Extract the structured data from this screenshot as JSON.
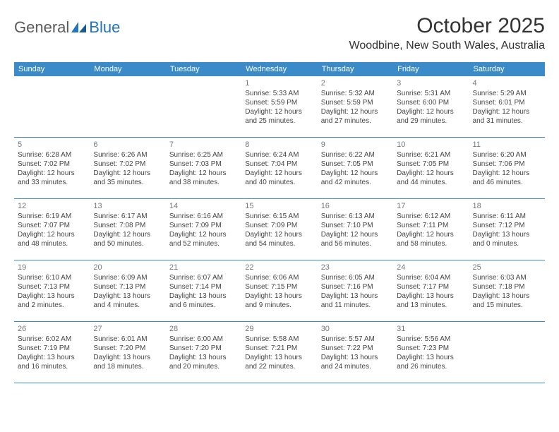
{
  "brand": {
    "name1": "General",
    "name2": "Blue"
  },
  "title": "October 2025",
  "location": "Woodbine, New South Wales, Australia",
  "colors": {
    "header_bg": "#3b8bc8",
    "header_text": "#ffffff",
    "body_text": "#444444",
    "daynum": "#777777",
    "rule": "#3b8bc8",
    "logo_blue": "#2474b8",
    "logo_gray": "#5a5a5a",
    "page_bg": "#ffffff"
  },
  "weekdays": [
    "Sunday",
    "Monday",
    "Tuesday",
    "Wednesday",
    "Thursday",
    "Friday",
    "Saturday"
  ],
  "weeks": [
    [
      null,
      null,
      null,
      {
        "n": "1",
        "sr": "Sunrise: 5:33 AM",
        "ss": "Sunset: 5:59 PM",
        "d1": "Daylight: 12 hours",
        "d2": "and 25 minutes."
      },
      {
        "n": "2",
        "sr": "Sunrise: 5:32 AM",
        "ss": "Sunset: 5:59 PM",
        "d1": "Daylight: 12 hours",
        "d2": "and 27 minutes."
      },
      {
        "n": "3",
        "sr": "Sunrise: 5:31 AM",
        "ss": "Sunset: 6:00 PM",
        "d1": "Daylight: 12 hours",
        "d2": "and 29 minutes."
      },
      {
        "n": "4",
        "sr": "Sunrise: 5:29 AM",
        "ss": "Sunset: 6:01 PM",
        "d1": "Daylight: 12 hours",
        "d2": "and 31 minutes."
      }
    ],
    [
      {
        "n": "5",
        "sr": "Sunrise: 6:28 AM",
        "ss": "Sunset: 7:02 PM",
        "d1": "Daylight: 12 hours",
        "d2": "and 33 minutes."
      },
      {
        "n": "6",
        "sr": "Sunrise: 6:26 AM",
        "ss": "Sunset: 7:02 PM",
        "d1": "Daylight: 12 hours",
        "d2": "and 35 minutes."
      },
      {
        "n": "7",
        "sr": "Sunrise: 6:25 AM",
        "ss": "Sunset: 7:03 PM",
        "d1": "Daylight: 12 hours",
        "d2": "and 38 minutes."
      },
      {
        "n": "8",
        "sr": "Sunrise: 6:24 AM",
        "ss": "Sunset: 7:04 PM",
        "d1": "Daylight: 12 hours",
        "d2": "and 40 minutes."
      },
      {
        "n": "9",
        "sr": "Sunrise: 6:22 AM",
        "ss": "Sunset: 7:05 PM",
        "d1": "Daylight: 12 hours",
        "d2": "and 42 minutes."
      },
      {
        "n": "10",
        "sr": "Sunrise: 6:21 AM",
        "ss": "Sunset: 7:05 PM",
        "d1": "Daylight: 12 hours",
        "d2": "and 44 minutes."
      },
      {
        "n": "11",
        "sr": "Sunrise: 6:20 AM",
        "ss": "Sunset: 7:06 PM",
        "d1": "Daylight: 12 hours",
        "d2": "and 46 minutes."
      }
    ],
    [
      {
        "n": "12",
        "sr": "Sunrise: 6:19 AM",
        "ss": "Sunset: 7:07 PM",
        "d1": "Daylight: 12 hours",
        "d2": "and 48 minutes."
      },
      {
        "n": "13",
        "sr": "Sunrise: 6:17 AM",
        "ss": "Sunset: 7:08 PM",
        "d1": "Daylight: 12 hours",
        "d2": "and 50 minutes."
      },
      {
        "n": "14",
        "sr": "Sunrise: 6:16 AM",
        "ss": "Sunset: 7:09 PM",
        "d1": "Daylight: 12 hours",
        "d2": "and 52 minutes."
      },
      {
        "n": "15",
        "sr": "Sunrise: 6:15 AM",
        "ss": "Sunset: 7:09 PM",
        "d1": "Daylight: 12 hours",
        "d2": "and 54 minutes."
      },
      {
        "n": "16",
        "sr": "Sunrise: 6:13 AM",
        "ss": "Sunset: 7:10 PM",
        "d1": "Daylight: 12 hours",
        "d2": "and 56 minutes."
      },
      {
        "n": "17",
        "sr": "Sunrise: 6:12 AM",
        "ss": "Sunset: 7:11 PM",
        "d1": "Daylight: 12 hours",
        "d2": "and 58 minutes."
      },
      {
        "n": "18",
        "sr": "Sunrise: 6:11 AM",
        "ss": "Sunset: 7:12 PM",
        "d1": "Daylight: 13 hours",
        "d2": "and 0 minutes."
      }
    ],
    [
      {
        "n": "19",
        "sr": "Sunrise: 6:10 AM",
        "ss": "Sunset: 7:13 PM",
        "d1": "Daylight: 13 hours",
        "d2": "and 2 minutes."
      },
      {
        "n": "20",
        "sr": "Sunrise: 6:09 AM",
        "ss": "Sunset: 7:13 PM",
        "d1": "Daylight: 13 hours",
        "d2": "and 4 minutes."
      },
      {
        "n": "21",
        "sr": "Sunrise: 6:07 AM",
        "ss": "Sunset: 7:14 PM",
        "d1": "Daylight: 13 hours",
        "d2": "and 6 minutes."
      },
      {
        "n": "22",
        "sr": "Sunrise: 6:06 AM",
        "ss": "Sunset: 7:15 PM",
        "d1": "Daylight: 13 hours",
        "d2": "and 9 minutes."
      },
      {
        "n": "23",
        "sr": "Sunrise: 6:05 AM",
        "ss": "Sunset: 7:16 PM",
        "d1": "Daylight: 13 hours",
        "d2": "and 11 minutes."
      },
      {
        "n": "24",
        "sr": "Sunrise: 6:04 AM",
        "ss": "Sunset: 7:17 PM",
        "d1": "Daylight: 13 hours",
        "d2": "and 13 minutes."
      },
      {
        "n": "25",
        "sr": "Sunrise: 6:03 AM",
        "ss": "Sunset: 7:18 PM",
        "d1": "Daylight: 13 hours",
        "d2": "and 15 minutes."
      }
    ],
    [
      {
        "n": "26",
        "sr": "Sunrise: 6:02 AM",
        "ss": "Sunset: 7:19 PM",
        "d1": "Daylight: 13 hours",
        "d2": "and 16 minutes."
      },
      {
        "n": "27",
        "sr": "Sunrise: 6:01 AM",
        "ss": "Sunset: 7:20 PM",
        "d1": "Daylight: 13 hours",
        "d2": "and 18 minutes."
      },
      {
        "n": "28",
        "sr": "Sunrise: 6:00 AM",
        "ss": "Sunset: 7:20 PM",
        "d1": "Daylight: 13 hours",
        "d2": "and 20 minutes."
      },
      {
        "n": "29",
        "sr": "Sunrise: 5:58 AM",
        "ss": "Sunset: 7:21 PM",
        "d1": "Daylight: 13 hours",
        "d2": "and 22 minutes."
      },
      {
        "n": "30",
        "sr": "Sunrise: 5:57 AM",
        "ss": "Sunset: 7:22 PM",
        "d1": "Daylight: 13 hours",
        "d2": "and 24 minutes."
      },
      {
        "n": "31",
        "sr": "Sunrise: 5:56 AM",
        "ss": "Sunset: 7:23 PM",
        "d1": "Daylight: 13 hours",
        "d2": "and 26 minutes."
      },
      null
    ]
  ]
}
